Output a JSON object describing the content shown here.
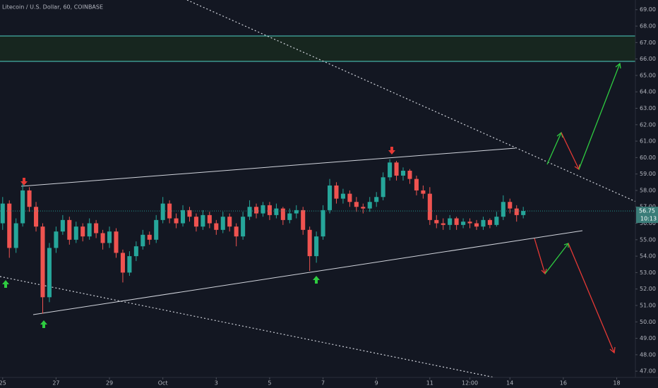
{
  "chart_data": {
    "type": "candlestick",
    "title": "Litecoin / U.S. Dollar, 60, COINBASE",
    "up_color": "#26a69a",
    "down_color": "#ef5350",
    "last_price": 56.75,
    "countdown": "10:13",
    "x": [
      0,
      0.25,
      0.5,
      0.75,
      1,
      1.25,
      1.5,
      1.75,
      2,
      2.25,
      2.5,
      2.75,
      3,
      3.25,
      3.5,
      3.75,
      4,
      4.25,
      4.5,
      4.75,
      5,
      5.25,
      5.5,
      5.75,
      6,
      6.25,
      6.5,
      6.75,
      7,
      7.25,
      7.5,
      7.75,
      8,
      8.25,
      8.5,
      8.75,
      9,
      9.25,
      9.5,
      9.75,
      10,
      10.25,
      10.5,
      10.75,
      11,
      11.25,
      11.5,
      11.75,
      12,
      12.25,
      12.5,
      12.75,
      13,
      13.25,
      13.5,
      13.75,
      14,
      14.25,
      14.5,
      14.75,
      15,
      15.25,
      15.5,
      15.75,
      16,
      16.25,
      16.5,
      16.75,
      17,
      17.25,
      17.5,
      17.75,
      18,
      18.25,
      18.5,
      18.75,
      19,
      19.25,
      19.5
    ],
    "open": [
      56.0,
      57.2,
      54.5,
      56.0,
      58.0,
      57.0,
      55.8,
      51.5,
      54.5,
      55.5,
      56.2,
      55.0,
      55.8,
      55.2,
      56.0,
      55.4,
      54.8,
      55.5,
      54.2,
      53.0,
      54.0,
      54.6,
      55.3,
      55.0,
      56.2,
      57.2,
      56.3,
      56.0,
      56.8,
      56.4,
      55.8,
      56.5,
      56.0,
      55.6,
      56.4,
      55.8,
      55.2,
      56.4,
      57.0,
      56.6,
      57.1,
      56.5,
      56.9,
      56.2,
      56.6,
      56.8,
      55.6,
      54.0,
      55.2,
      56.8,
      58.3,
      57.5,
      57.8,
      57.3,
      57.0,
      56.9,
      57.3,
      57.6,
      58.8,
      59.7,
      58.9,
      59.2,
      58.7,
      58.0,
      57.8,
      56.2,
      56.0,
      55.9,
      56.3,
      55.9,
      56.1,
      56.0,
      55.8,
      56.2,
      55.9,
      56.4,
      57.3,
      56.9,
      56.5
    ],
    "high": [
      57.6,
      57.4,
      56.3,
      58.4,
      58.2,
      57.3,
      56.0,
      54.8,
      55.8,
      56.5,
      56.4,
      56.1,
      56.0,
      56.3,
      56.2,
      55.6,
      55.8,
      55.7,
      54.4,
      54.3,
      54.9,
      55.6,
      55.5,
      56.5,
      57.6,
      57.4,
      56.6,
      57.1,
      57.0,
      56.6,
      56.8,
      56.7,
      56.2,
      56.7,
      56.6,
      56.0,
      56.7,
      57.4,
      57.2,
      57.3,
      57.3,
      57.2,
      57.0,
      56.9,
      57.1,
      57.0,
      55.8,
      55.5,
      57.1,
      58.7,
      58.5,
      58.1,
      58.0,
      57.6,
      57.2,
      57.6,
      57.9,
      59.1,
      59.9,
      59.8,
      59.4,
      59.3,
      58.9,
      58.3,
      58.2,
      56.5,
      56.3,
      56.5,
      56.4,
      56.3,
      56.3,
      56.2,
      56.4,
      56.3,
      56.7,
      57.7,
      57.5,
      57.1,
      57.0
    ],
    "low": [
      55.6,
      53.9,
      54.2,
      55.8,
      56.7,
      55.5,
      50.5,
      51.2,
      54.2,
      55.3,
      54.7,
      54.8,
      54.9,
      55.0,
      55.1,
      54.4,
      54.5,
      53.9,
      52.4,
      52.8,
      53.7,
      54.4,
      54.7,
      54.8,
      56.0,
      56.0,
      55.7,
      55.8,
      56.1,
      55.5,
      55.6,
      55.7,
      55.3,
      55.4,
      55.5,
      54.6,
      55.0,
      56.2,
      56.3,
      56.4,
      56.2,
      56.3,
      55.9,
      56.0,
      56.3,
      55.3,
      53.1,
      53.6,
      55.0,
      56.6,
      57.2,
      57.2,
      57.0,
      56.7,
      56.6,
      56.7,
      57.0,
      57.4,
      58.6,
      58.6,
      58.6,
      58.4,
      57.7,
      57.5,
      55.9,
      55.7,
      55.6,
      55.6,
      55.6,
      55.7,
      55.7,
      55.6,
      55.6,
      55.7,
      55.8,
      56.2,
      56.6,
      56.1,
      56.3
    ],
    "close": [
      57.2,
      54.5,
      56.0,
      58.0,
      57.0,
      55.8,
      51.5,
      54.5,
      55.5,
      56.2,
      55.0,
      55.8,
      55.2,
      56.0,
      55.4,
      54.8,
      55.5,
      54.2,
      53.0,
      54.0,
      54.6,
      55.3,
      55.0,
      56.2,
      57.2,
      56.3,
      56.0,
      56.8,
      56.4,
      55.8,
      56.5,
      56.0,
      55.6,
      56.4,
      55.8,
      55.2,
      56.4,
      57.0,
      56.6,
      57.1,
      56.5,
      56.9,
      56.2,
      56.6,
      56.8,
      55.6,
      54.0,
      55.2,
      56.8,
      58.3,
      57.5,
      57.8,
      57.3,
      57.0,
      56.9,
      57.3,
      57.6,
      58.8,
      59.7,
      58.9,
      59.2,
      58.7,
      58.0,
      57.8,
      56.2,
      56.0,
      55.9,
      56.3,
      55.9,
      56.1,
      56.0,
      55.8,
      56.2,
      55.9,
      56.4,
      57.3,
      56.9,
      56.5,
      56.75
    ],
    "xlim": [
      -0.1,
      23.7
    ],
    "xticks": [
      {
        "value": 0,
        "label": "25"
      },
      {
        "value": 2,
        "label": "27"
      },
      {
        "value": 4,
        "label": "29"
      },
      {
        "value": 6,
        "label": "Oct"
      },
      {
        "value": 8,
        "label": "3"
      },
      {
        "value": 10,
        "label": "5"
      },
      {
        "value": 12,
        "label": "7"
      },
      {
        "value": 14,
        "label": "9"
      },
      {
        "value": 16,
        "label": "11"
      },
      {
        "value": 17.5,
        "label": "12:00"
      },
      {
        "value": 19,
        "label": "14"
      },
      {
        "value": 21,
        "label": "16"
      },
      {
        "value": 23,
        "label": "18"
      }
    ],
    "ylim": [
      46.62,
      69.59
    ],
    "yticks": [
      {
        "value": 47,
        "label": "47.00"
      },
      {
        "value": 48,
        "label": "48.00"
      },
      {
        "value": 49,
        "label": "49.00"
      },
      {
        "value": 50,
        "label": "50.00"
      },
      {
        "value": 51,
        "label": "51.00"
      },
      {
        "value": 52,
        "label": "52.00"
      },
      {
        "value": 53,
        "label": "53.00"
      },
      {
        "value": 54,
        "label": "54.00"
      },
      {
        "value": 55,
        "label": "55.00"
      },
      {
        "value": 56,
        "label": "56.00"
      },
      {
        "value": 57,
        "label": "57.00"
      },
      {
        "value": 58,
        "label": "58.00"
      },
      {
        "value": 59,
        "label": "59.00"
      },
      {
        "value": 60,
        "label": "60.00"
      },
      {
        "value": 61,
        "label": "61.00"
      },
      {
        "value": 62,
        "label": "62.00"
      },
      {
        "value": 63,
        "label": "63.00"
      },
      {
        "value": 64,
        "label": "64.00"
      },
      {
        "value": 65,
        "label": "65.00"
      },
      {
        "value": 66,
        "label": "66.00"
      },
      {
        "value": 67,
        "label": "67.00"
      },
      {
        "value": 68,
        "label": "68.00"
      },
      {
        "value": 69,
        "label": "69.00"
      }
    ]
  }
}
